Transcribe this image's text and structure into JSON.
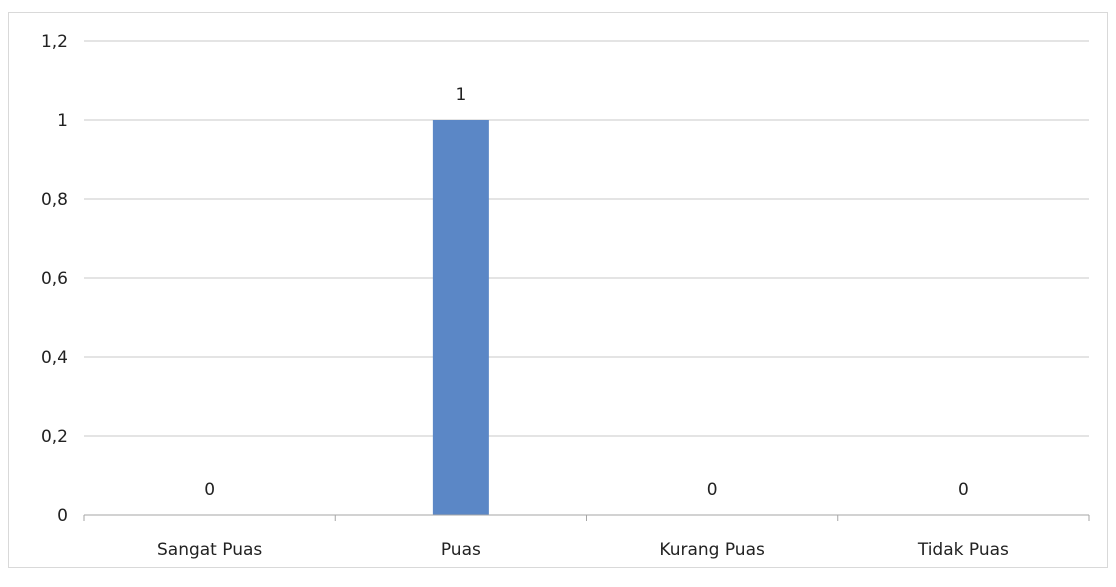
{
  "chart_data": {
    "type": "bar",
    "title": "",
    "xlabel": "",
    "ylabel": "",
    "categories": [
      "Sangat Puas",
      "Puas",
      "Kurang Puas",
      "Tidak Puas"
    ],
    "values": [
      0,
      1,
      0,
      0
    ],
    "data_labels": [
      "0",
      "1",
      "0",
      "0"
    ],
    "ylim": [
      0,
      1.2
    ],
    "y_ticks": [
      0,
      0.2,
      0.4,
      0.6,
      0.8,
      1,
      1.2
    ],
    "y_tick_labels": [
      "0",
      "0,2",
      "0,4",
      "0,6",
      "0,8",
      "1",
      "1,2"
    ],
    "grid": true,
    "legend": "none",
    "bar_color": "#5b87c6"
  }
}
